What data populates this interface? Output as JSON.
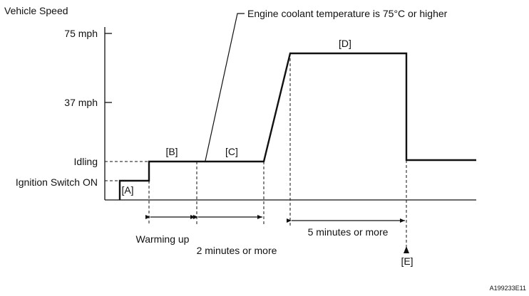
{
  "diagram": {
    "y_axis_title": "Vehicle Speed",
    "levels": {
      "speed_75": "75 mph",
      "speed_37": "37 mph",
      "idling": "Idling",
      "ignition_on": "Ignition Switch ON"
    },
    "phases": {
      "a": "[A]",
      "b": "[B]",
      "c": "[C]",
      "d": "[D]",
      "e": "[E]"
    },
    "annotation": "Engine coolant temperature is 75°C or higher",
    "durations": {
      "warming_up": "Warming up",
      "c_duration": "2 minutes or more",
      "d_duration": "5 minutes or more"
    },
    "figure_code": "A199233E11"
  }
}
